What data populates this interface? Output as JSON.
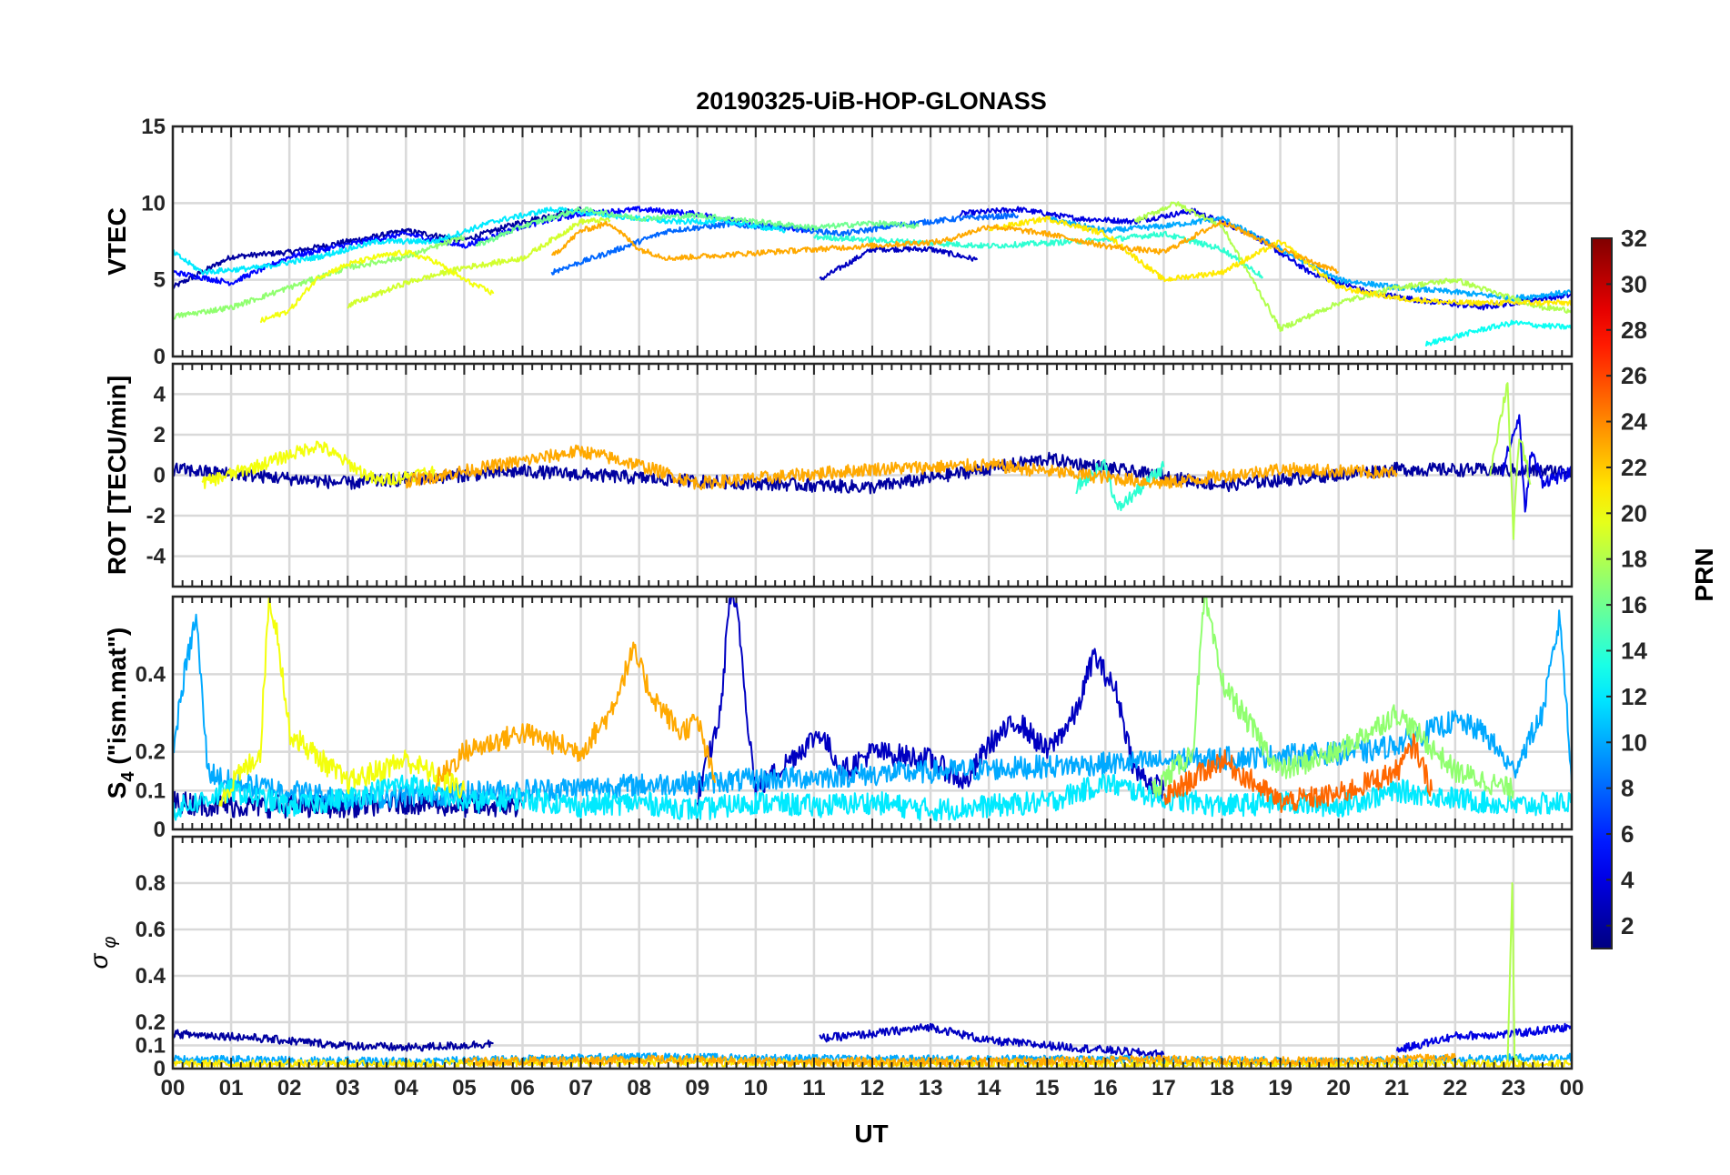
{
  "chart_data": {
    "type": "line",
    "title": "20190325-UiB-HOP-GLONASS",
    "xlabel": "UT",
    "x_tick_labels": [
      "00",
      "01",
      "02",
      "03",
      "04",
      "05",
      "06",
      "07",
      "08",
      "09",
      "10",
      "11",
      "12",
      "13",
      "14",
      "15",
      "16",
      "17",
      "18",
      "19",
      "20",
      "21",
      "22",
      "23",
      "00"
    ],
    "xlim_hours": [
      0,
      24
    ],
    "colorbar": {
      "label": "PRN",
      "range": [
        1,
        32
      ],
      "tick_labels": [
        "2",
        "4",
        "6",
        "8",
        "10",
        "12",
        "14",
        "16",
        "18",
        "20",
        "22",
        "24",
        "26",
        "28",
        "30",
        "32"
      ]
    },
    "panels": [
      {
        "id": "vtec",
        "ylabel": "VTEC",
        "ylim": [
          0,
          15
        ],
        "y_tick_labels": [
          "0",
          "5",
          "10",
          "15"
        ],
        "series": [
          {
            "name": "PRN 2",
            "prn": 2,
            "x": [
              0,
              1,
              2,
              3,
              4,
              5,
              6,
              7
            ],
            "y": [
              4.5,
              6.5,
              6.8,
              7.5,
              8.2,
              7.6,
              8.8,
              9.6
            ]
          },
          {
            "name": "PRN 3",
            "prn": 3,
            "x": [
              11.1,
              12,
              13,
              13.8
            ],
            "y": [
              5.0,
              7.0,
              7.0,
              6.3
            ]
          },
          {
            "name": "PRN 4",
            "prn": 4,
            "x": [
              13.5,
              14.5,
              15.5,
              16.5,
              17.5,
              18.5,
              19.5,
              20.5,
              21.5,
              22.5,
              23.5,
              24
            ],
            "y": [
              9.3,
              9.6,
              9.0,
              8.8,
              9.5,
              8.0,
              5.5,
              4.2,
              3.6,
              3.2,
              3.8,
              4.0
            ]
          },
          {
            "name": "PRN 5",
            "prn": 5,
            "x": [
              0,
              1,
              2,
              3,
              4,
              5,
              6,
              7,
              8,
              9,
              10,
              11
            ],
            "y": [
              5.5,
              4.8,
              6.5,
              7.3,
              8.0,
              7.2,
              8.5,
              9.3,
              9.6,
              9.3,
              8.6,
              8.2
            ]
          },
          {
            "name": "PRN 8",
            "prn": 8,
            "x": [
              6.5,
              7.5,
              8.5,
              9.5,
              10.5,
              11.5,
              12.5,
              13.5,
              14.5
            ],
            "y": [
              5.5,
              6.8,
              8.2,
              8.6,
              8.4,
              8.0,
              8.6,
              9.0,
              9.2
            ]
          },
          {
            "name": "PRN 10",
            "prn": 10,
            "x": [
              15,
              16,
              17,
              18,
              19,
              20,
              21,
              22,
              23,
              24
            ],
            "y": [
              9.0,
              8.2,
              8.5,
              9.0,
              7.0,
              5.0,
              4.5,
              4.2,
              3.8,
              4.2
            ]
          },
          {
            "name": "PRN 12",
            "prn": 12,
            "x": [
              0,
              0.5,
              1.5,
              2.5,
              3.5,
              4.5,
              5.5,
              6.5,
              7.5,
              8.5,
              9.5,
              10.5
            ],
            "y": [
              6.8,
              5.5,
              5.8,
              6.5,
              7.5,
              7.5,
              8.8,
              9.6,
              9.2,
              8.8,
              8.8,
              8.2
            ]
          },
          {
            "name": "PRN 13",
            "prn": 13,
            "x": [
              21.5,
              22.5,
              23,
              23.5,
              24
            ],
            "y": [
              0.8,
              1.8,
              2.2,
              2.0,
              1.9
            ]
          },
          {
            "name": "PRN 14",
            "prn": 14,
            "x": [
              11,
              12,
              13,
              14,
              15,
              16,
              17,
              18,
              18.7
            ],
            "y": [
              7.8,
              7.6,
              7.4,
              7.2,
              7.4,
              7.6,
              8.0,
              7.0,
              5.2
            ]
          },
          {
            "name": "PRN 16",
            "prn": 16,
            "x": [
              5.2,
              6,
              7,
              8,
              9,
              10,
              11,
              12,
              12.8
            ],
            "y": [
              7.2,
              8.5,
              9.6,
              9.0,
              9.2,
              8.8,
              8.4,
              8.7,
              8.5
            ]
          },
          {
            "name": "PRN 17",
            "prn": 17,
            "x": [
              0,
              1,
              2,
              3,
              4,
              5
            ],
            "y": [
              2.6,
              3.2,
              4.5,
              5.8,
              6.5,
              7.8
            ]
          },
          {
            "name": "PRN 18",
            "prn": 18,
            "x": [
              16.5,
              17.2,
              18,
              19,
              20,
              21,
              22,
              22.8,
              23.5,
              24
            ],
            "y": [
              8.8,
              10.0,
              8.5,
              1.8,
              3.5,
              4.5,
              5.0,
              4.0,
              3.2,
              3.0
            ]
          },
          {
            "name": "PRN 19",
            "prn": 19,
            "x": [
              3,
              4,
              5,
              6,
              7,
              7.5
            ],
            "y": [
              3.3,
              4.8,
              5.8,
              6.4,
              8.8,
              8.9
            ]
          },
          {
            "name": "PRN 20",
            "prn": 20,
            "x": [
              1.5,
              2,
              2.5,
              3,
              3.5,
              4,
              4.5,
              5,
              5.5
            ],
            "y": [
              2.3,
              3.0,
              5.2,
              6.0,
              6.5,
              6.8,
              6.2,
              5.0,
              4.1
            ]
          },
          {
            "name": "PRN 21",
            "prn": 21,
            "x": [
              14,
              15,
              16,
              17,
              18,
              19,
              20,
              21,
              22,
              23,
              24
            ],
            "y": [
              8.3,
              9.0,
              8.0,
              5.0,
              5.5,
              7.5,
              4.5,
              3.8,
              3.5,
              3.5,
              3.5
            ]
          },
          {
            "name": "PRN 23",
            "prn": 23,
            "x": [
              6.5,
              7,
              7.5,
              8,
              8.5,
              13.2,
              14,
              15,
              16,
              17,
              18,
              19,
              20
            ],
            "y": [
              6.5,
              8.2,
              8.7,
              7.0,
              6.4,
              7.5,
              8.5,
              8.0,
              7.2,
              6.8,
              8.8,
              7.0,
              5.5
            ]
          }
        ]
      },
      {
        "id": "rot",
        "ylabel": "ROT [TECU/min]",
        "ylim": [
          -5.5,
          5.5
        ],
        "y_tick_labels": [
          "-4",
          "-2",
          "0",
          "2",
          "4"
        ],
        "series": [
          {
            "name": "PRN 2",
            "prn": 2,
            "x": [
              0,
              3,
              6,
              9,
              12,
              15,
              18,
              21,
              24
            ],
            "y": [
              0.3,
              -0.4,
              0.2,
              -0.3,
              -0.6,
              0.8,
              -0.5,
              0.3,
              0.2
            ]
          },
          {
            "name": "PRN 4",
            "prn": 4,
            "x": [
              22.8,
              23.1,
              23.2,
              23.3,
              23.5,
              24
            ],
            "y": [
              0.2,
              2.9,
              -2.0,
              1.2,
              -0.3,
              0.1
            ]
          },
          {
            "name": "PRN 14",
            "prn": 14,
            "x": [
              15.5,
              16,
              16.2,
              17
            ],
            "y": [
              -0.6,
              0.6,
              -1.7,
              0.4
            ]
          },
          {
            "name": "PRN 18",
            "prn": 18,
            "x": [
              22.6,
              22.9,
              23.0,
              23.1,
              23.3
            ],
            "y": [
              0.2,
              4.6,
              -3.0,
              2.0,
              -0.4
            ]
          },
          {
            "name": "PRN 20",
            "prn": 20,
            "x": [
              0.5,
              1.5,
              2.5,
              3.5,
              4.5
            ],
            "y": [
              -0.4,
              0.5,
              1.5,
              -0.3,
              0.2
            ]
          },
          {
            "name": "PRN 23",
            "prn": 23,
            "x": [
              4,
              7,
              8,
              9,
              12,
              14,
              17,
              19,
              21
            ],
            "y": [
              -0.3,
              1.2,
              0.5,
              -0.4,
              0.3,
              0.5,
              -0.4,
              0.3,
              0.1
            ]
          }
        ]
      },
      {
        "id": "s4",
        "ylabel": "S4 (\"ism.mat\")",
        "ylabel_main": "S",
        "ylabel_sub": "4",
        "ylabel_rest": " (\"ism.mat\")",
        "ylim": [
          0,
          0.6
        ],
        "y_tick_labels": [
          "0",
          "0.1",
          "0.2",
          "0.4"
        ],
        "series": [
          {
            "name": "PRN 2",
            "prn": 2,
            "x": [
              0,
              1,
              2,
              3,
              4,
              5,
              6
            ],
            "y": [
              0.07,
              0.06,
              0.06,
              0.06,
              0.07,
              0.06,
              0.06
            ]
          },
          {
            "name": "PRN 3",
            "prn": 3,
            "x": [
              9.0,
              9.4,
              9.55,
              9.7,
              9.85,
              10.0,
              11.1,
              11.5,
              12,
              13,
              13.6,
              14,
              14.5,
              15,
              15.5,
              15.8,
              16.2,
              16.5,
              17
            ],
            "y": [
              0.08,
              0.3,
              0.6,
              0.55,
              0.3,
              0.1,
              0.25,
              0.15,
              0.2,
              0.18,
              0.12,
              0.22,
              0.28,
              0.2,
              0.3,
              0.45,
              0.35,
              0.15,
              0.1
            ]
          },
          {
            "name": "PRN 10",
            "prn": 10,
            "x": [
              0,
              0.2,
              0.4,
              0.6,
              1,
              2,
              3,
              20.5,
              21,
              22,
              22.5,
              23,
              23.5,
              23.8,
              24
            ],
            "y": [
              0.2,
              0.4,
              0.55,
              0.15,
              0.12,
              0.1,
              0.08,
              0.2,
              0.22,
              0.28,
              0.25,
              0.15,
              0.3,
              0.55,
              0.12
            ]
          },
          {
            "name": "PRN 12",
            "prn": 12,
            "x": [
              0,
              1,
              2,
              3,
              4,
              5,
              6,
              7,
              8,
              9,
              10,
              11,
              12,
              13,
              14,
              15,
              16,
              17,
              18,
              19,
              20,
              21,
              22,
              23,
              24
            ],
            "y": [
              0.05,
              0.1,
              0.06,
              0.08,
              0.12,
              0.07,
              0.08,
              0.06,
              0.07,
              0.05,
              0.07,
              0.06,
              0.07,
              0.05,
              0.06,
              0.07,
              0.12,
              0.08,
              0.06,
              0.07,
              0.06,
              0.1,
              0.08,
              0.06,
              0.07
            ]
          },
          {
            "name": "PRN 17",
            "prn": 17,
            "x": [
              16.8,
              17.5,
              17.7,
              18,
              19,
              20,
              21,
              22,
              23
            ],
            "y": [
              0.1,
              0.2,
              0.6,
              0.38,
              0.15,
              0.2,
              0.3,
              0.15,
              0.1
            ]
          },
          {
            "name": "PRN 20",
            "prn": 20,
            "x": [
              0.8,
              1.5,
              1.65,
              1.8,
              2,
              3,
              4,
              5
            ],
            "y": [
              0.08,
              0.2,
              0.6,
              0.5,
              0.25,
              0.12,
              0.18,
              0.1
            ]
          },
          {
            "name": "PRN 23",
            "prn": 23,
            "x": [
              4.5,
              5,
              6,
              7,
              7.5,
              7.9,
              8.2,
              8.7,
              9.0,
              9.3
            ],
            "y": [
              0.12,
              0.2,
              0.25,
              0.2,
              0.3,
              0.46,
              0.35,
              0.25,
              0.28,
              0.12
            ]
          },
          {
            "name": "PRN 25",
            "prn": 25,
            "x": [
              17,
              18,
              19,
              20,
              21,
              21.3,
              21.6
            ],
            "y": [
              0.08,
              0.18,
              0.07,
              0.09,
              0.15,
              0.22,
              0.1
            ]
          }
        ]
      },
      {
        "id": "sigma_phi",
        "ylabel": "σ φ",
        "ylabel_main": "σ",
        "ylabel_sub": "φ",
        "ylim": [
          0,
          1
        ],
        "y_tick_labels": [
          "0",
          "0.1",
          "0.2",
          "0.4",
          "0.6",
          "0.8"
        ],
        "series": [
          {
            "name": "PRN 2",
            "prn": 2,
            "x": [
              0,
              1,
              2,
              3,
              4,
              5,
              5.5
            ],
            "y": [
              0.15,
              0.14,
              0.12,
              0.1,
              0.09,
              0.1,
              0.11
            ]
          },
          {
            "name": "PRN 3",
            "prn": 3,
            "x": [
              11.1,
              12,
              13,
              14,
              15,
              16,
              17
            ],
            "y": [
              0.13,
              0.15,
              0.18,
              0.12,
              0.1,
              0.08,
              0.06
            ]
          },
          {
            "name": "PRN 4",
            "prn": 4,
            "x": [
              21,
              22,
              23,
              24
            ],
            "y": [
              0.08,
              0.14,
              0.15,
              0.18
            ]
          },
          {
            "name": "PRN 10",
            "prn": 10,
            "x": [
              0,
              4,
              8,
              12,
              16,
              20,
              24
            ],
            "y": [
              0.04,
              0.03,
              0.05,
              0.04,
              0.04,
              0.03,
              0.05
            ]
          },
          {
            "name": "PRN 18",
            "prn": 18,
            "x": [
              22.9,
              22.98,
              23.02,
              23.1
            ],
            "y": [
              0.03,
              0.8,
              0.04,
              0.03
            ]
          },
          {
            "name": "PRN 21",
            "prn": 21,
            "x": [
              0,
              4,
              8,
              12,
              16,
              20,
              24
            ],
            "y": [
              0.02,
              0.02,
              0.03,
              0.02,
              0.02,
              0.02,
              0.02
            ]
          },
          {
            "name": "PRN 23",
            "prn": 23,
            "x": [
              5,
              8,
              11,
              14,
              17,
              20,
              22
            ],
            "y": [
              0.03,
              0.04,
              0.03,
              0.03,
              0.04,
              0.03,
              0.05
            ]
          }
        ]
      }
    ]
  }
}
